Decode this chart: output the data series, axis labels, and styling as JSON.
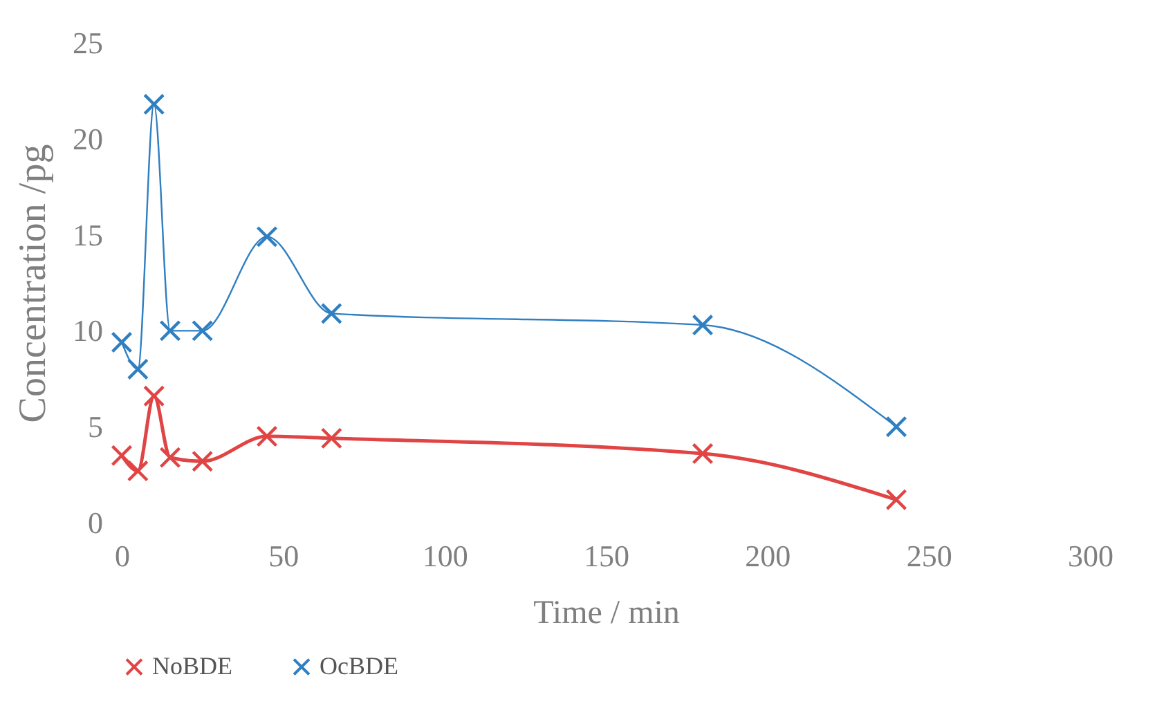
{
  "chart_data": {
    "type": "line",
    "xlabel": "Time / min",
    "ylabel": "Concentration /pg",
    "x": [
      0,
      5,
      10,
      15,
      25,
      45,
      65,
      180,
      240
    ],
    "series": [
      {
        "name": "NoBDE",
        "color": "#e04444",
        "values": [
          3.5,
          2.7,
          6.6,
          3.4,
          3.2,
          4.5,
          4.4,
          3.6,
          1.2
        ]
      },
      {
        "name": "OcBDE",
        "color": "#2f7fc1",
        "values": [
          9.4,
          8.0,
          21.8,
          10.0,
          10.0,
          14.9,
          10.9,
          10.3,
          5.0
        ]
      }
    ],
    "xlim": [
      0,
      300
    ],
    "xticks": [
      0,
      50,
      100,
      150,
      200,
      250,
      300
    ],
    "ylim": [
      0,
      25
    ],
    "yticks": [
      0,
      5,
      10,
      15,
      20,
      25
    ],
    "grid": false,
    "legend": "bottom",
    "marker": "cross",
    "line_style": "solid"
  }
}
